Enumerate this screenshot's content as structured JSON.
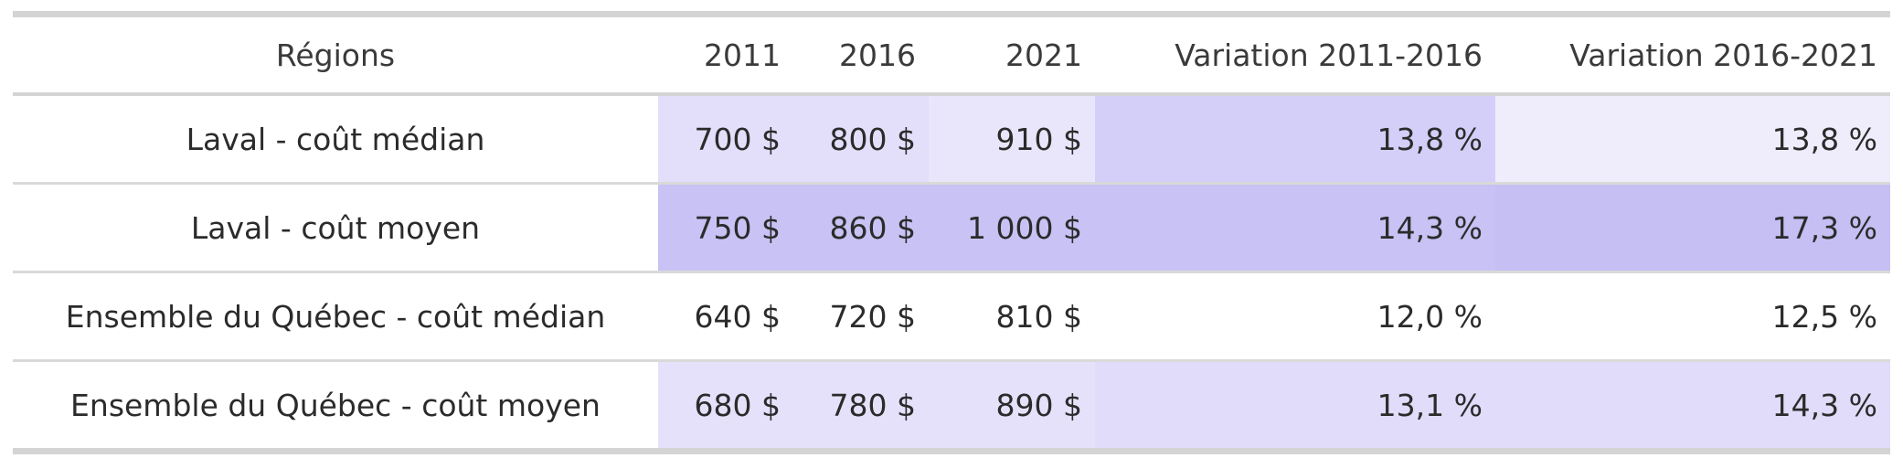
{
  "chart_data": {
    "type": "table",
    "columns": [
      "Régions",
      "2011",
      "2016",
      "2021",
      "Variation 2011-2016",
      "Variation 2016-2021"
    ],
    "rows": [
      {
        "region": "Laval - coût médian",
        "cells": [
          "700 $",
          "800 $",
          "910 $",
          "13,8 %",
          "13,8 %"
        ],
        "values": [
          700,
          800,
          910,
          13.8,
          13.8
        ],
        "colors": [
          "#e3defa",
          "#e3defa",
          "#e9e6fb",
          "#d4cff8",
          "#efedfc"
        ]
      },
      {
        "region": "Laval - coût moyen",
        "cells": [
          "750 $",
          "860 $",
          "1 000 $",
          "14,3 %",
          "17,3 %"
        ],
        "values": [
          750,
          860,
          1000,
          14.3,
          17.3
        ],
        "colors": [
          "#c8c2f5",
          "#c8c2f5",
          "#c8c2f5",
          "#c8c2f5",
          "#c5bff4"
        ]
      },
      {
        "region": "Ensemble du Québec - coût médian",
        "cells": [
          "640 $",
          "720 $",
          "810 $",
          "12,0 %",
          "12,5 %"
        ],
        "values": [
          640,
          720,
          810,
          12.0,
          12.5
        ],
        "colors": [
          "#ffffff",
          "#ffffff",
          "#ffffff",
          "#ffffff",
          "#ffffff"
        ]
      },
      {
        "region": "Ensemble du Québec - coût moyen",
        "cells": [
          "680 $",
          "780 $",
          "890 $",
          "13,1 %",
          "14,3 %"
        ],
        "values": [
          680,
          780,
          890,
          13.1,
          14.3
        ],
        "colors": [
          "#e5e1fa",
          "#e5e1fa",
          "#e5e1fa",
          "#e0dcfa",
          "#e0dcfa"
        ]
      }
    ]
  }
}
